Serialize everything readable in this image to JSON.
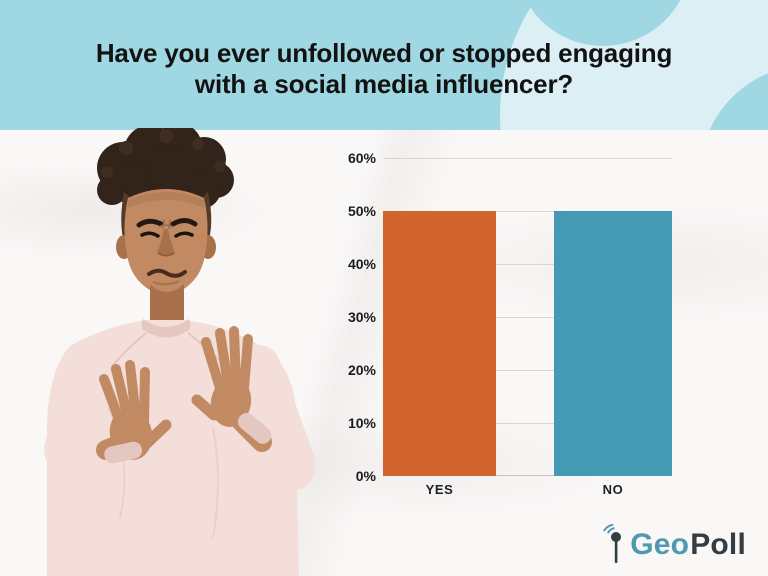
{
  "header": {
    "title_line1": "Have you ever unfollowed or stopped engaging",
    "title_line2": "with a social media influencer?"
  },
  "chart_data": {
    "type": "bar",
    "title": "Have you ever unfollowed or stopped engaging with a social media influencer?",
    "categories": [
      "YES",
      "NO"
    ],
    "values": [
      50,
      50
    ],
    "ylim": [
      0,
      60
    ],
    "yticks": [
      0,
      10,
      20,
      30,
      40,
      50,
      60
    ],
    "ytick_suffix": "%",
    "bar_colors": [
      "#d2652e",
      "#4499b5"
    ],
    "grid": true,
    "legend": false,
    "xlabel": "",
    "ylabel": ""
  },
  "illustration": {
    "alt": "Young man with curly hair grimacing in disgust, both hands raised in refusal, wearing a light pink sweatshirt"
  },
  "logo": {
    "geo": "Geo",
    "poll": "Poll"
  },
  "colors": {
    "header-bg": "#9fd8e3",
    "header-circle": "#dceff5",
    "skin": "#c18a63",
    "skin-dk": "#a8714b",
    "hair": "#32231b",
    "sweater": "#f3ded9",
    "sweater-dk": "#e4c7c0",
    "logo-geo": "#4f9ab0",
    "logo-poll": "#333d44",
    "text-dark": "#121212",
    "grid": "#d9d6d3"
  }
}
